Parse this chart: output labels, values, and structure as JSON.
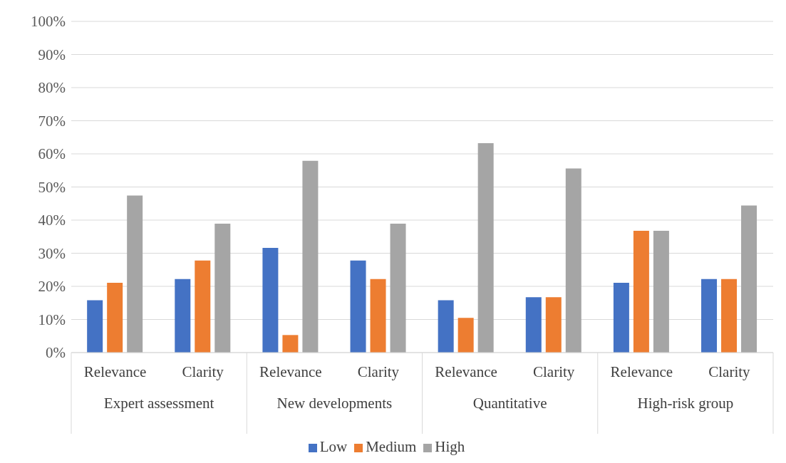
{
  "chart_data": {
    "type": "bar",
    "categories": [
      "Relevance",
      "Clarity",
      "Relevance",
      "Clarity",
      "Relevance",
      "Clarity",
      "Relevance",
      "Clarity"
    ],
    "annotations": [
      "Expert assessment",
      "New developments",
      "Quantitative",
      "High-risk group"
    ],
    "series": [
      {
        "name": "Low",
        "color": "#4472c4",
        "values": [
          15.8,
          22.2,
          31.6,
          27.8,
          15.8,
          16.7,
          21.1,
          22.2
        ]
      },
      {
        "name": "Medium",
        "color": "#ed7d31",
        "values": [
          21.1,
          27.8,
          5.3,
          22.2,
          10.5,
          16.7,
          36.8,
          22.2
        ]
      },
      {
        "name": "High",
        "color": "#a5a5a5",
        "values": [
          47.4,
          38.9,
          57.9,
          38.9,
          63.2,
          55.6,
          36.8,
          44.4
        ]
      }
    ],
    "ylim": [
      0,
      100
    ],
    "yticks": [
      {
        "value": 0,
        "label": "0%"
      },
      {
        "value": 10,
        "label": "10%"
      },
      {
        "value": 20,
        "label": "20%"
      },
      {
        "value": 30,
        "label": "30%"
      },
      {
        "value": 40,
        "label": "40%"
      },
      {
        "value": 50,
        "label": "50%"
      },
      {
        "value": 60,
        "label": "60%"
      },
      {
        "value": 70,
        "label": "70%"
      },
      {
        "value": 80,
        "label": "80%"
      },
      {
        "value": 90,
        "label": "90%"
      },
      {
        "value": 100,
        "label": "100%"
      }
    ],
    "grid": "y",
    "legend": "bottom"
  }
}
